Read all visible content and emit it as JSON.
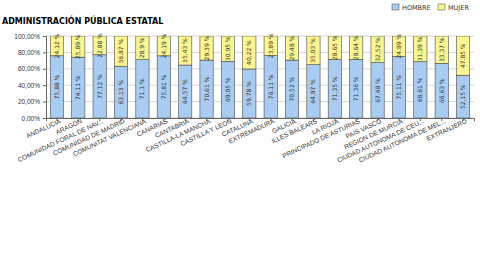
{
  "chart_data": {
    "type": "bar",
    "stacked": true,
    "data_labels": true,
    "grid": true,
    "legend": "top-right",
    "title": "ADMINISTRACIÓN PÚBLICA ESTATAL",
    "categories": [
      "ANDALUCIA",
      "ARAGON",
      "COMUNIDAD FORAL DE NAV...",
      "COMUNIDAD DE MADRID",
      "COMUNITAT VALENCIANA",
      "CANARIAS",
      "CANTABRIA",
      "CASTILLA-LA MANCHA",
      "CASTILLA Y LEON",
      "CATALUNA",
      "EXTREMADURA",
      "GALICIA",
      "ILLES BALEARS",
      "LA RIOJA",
      "PRINCIPADO DE ASTURIAS",
      "PAIS VASCO",
      "REGION DE MURCIA",
      "CIUDAD AUTONOMA DE CEU...",
      "CIUDAD AUTONOMA DE MEL...",
      "EXTRANJERO"
    ],
    "series": [
      {
        "name": "HOMBRE",
        "color": "#a9cdf2",
        "values": [
          75.88,
          74.11,
          77.12,
          63.13,
          71.1,
          75.81,
          64.57,
          70.61,
          69.05,
          59.78,
          76.11,
          70.52,
          64.97,
          71.35,
          71.36,
          67.48,
          75.11,
          68.61,
          66.63,
          52.15
        ],
        "value_labels": [
          "75,88 %",
          "74,11 %",
          "77,12 %",
          "63,13 %",
          "71,1 %",
          "75,81 %",
          "64,57 %",
          "70,61 %",
          "69,05 %",
          "59,78 %",
          "76,11 %",
          "70,52 %",
          "64,97 %",
          "71,35 %",
          "71,36 %",
          "67,48 %",
          "75,11 %",
          "68,61 %",
          "66,63 %",
          "52,15 %"
        ]
      },
      {
        "name": "MUJER",
        "color": "#fbf68f",
        "values": [
          24.12,
          25.89,
          22.88,
          36.87,
          28.9,
          24.19,
          35.43,
          29.39,
          30.95,
          40.22,
          23.89,
          29.48,
          35.03,
          28.65,
          28.64,
          32.52,
          24.89,
          31.39,
          33.37,
          47.85
        ],
        "value_labels": [
          "24,12 %",
          "25,89 %",
          "22,88 %",
          "36,87 %",
          "28,9 %",
          "24,19 %",
          "35,43 %",
          "29,39 %",
          "30,95 %",
          "40,22 %",
          "23,89 %",
          "29,48 %",
          "35,03 %",
          "28,65 %",
          "28,64 %",
          "32,52 %",
          "24,89 %",
          "31,39 %",
          "33,37 %",
          "47,85 %"
        ]
      }
    ],
    "ylim": [
      0,
      100
    ],
    "yticks": [
      {
        "value": 0,
        "label": "0,00%"
      },
      {
        "value": 20,
        "label": "20,00%"
      },
      {
        "value": 40,
        "label": "40,00%"
      },
      {
        "value": 60,
        "label": "60,00%"
      },
      {
        "value": 80,
        "label": "80,00%"
      },
      {
        "value": 100,
        "label": "100,00%"
      }
    ]
  }
}
